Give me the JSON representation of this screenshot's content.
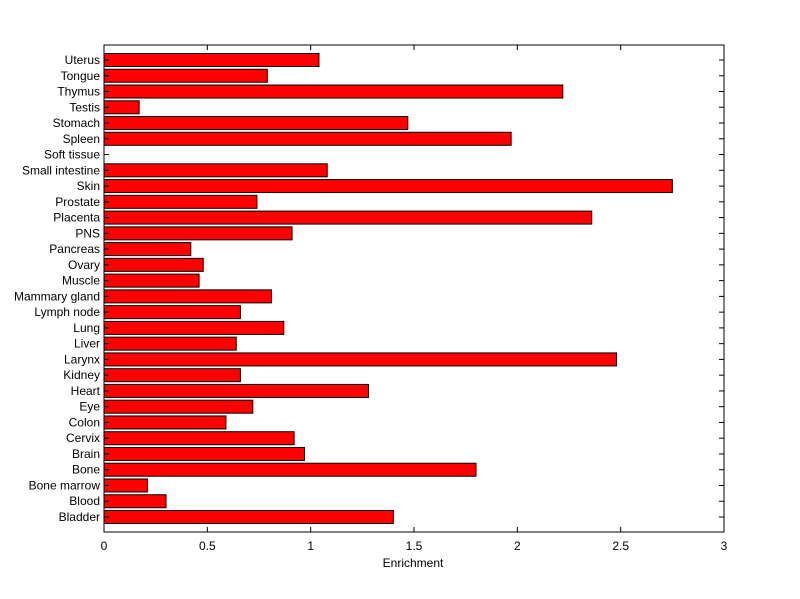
{
  "chart_data": {
    "type": "bar",
    "orientation": "horizontal",
    "title": "",
    "xlabel": "Enrichment",
    "ylabel": "",
    "xlim": [
      0,
      3
    ],
    "xticks": [
      0,
      0.5,
      1,
      1.5,
      2,
      2.5,
      3
    ],
    "xtick_labels": [
      "0",
      "0.5",
      "1",
      "1.5",
      "2",
      "2.5",
      "3"
    ],
    "grid": false,
    "legend": "none",
    "bar_color": "#ff0000",
    "bar_edge_color": "#000000",
    "categories": [
      "Bladder",
      "Blood",
      "Bone marrow",
      "Bone",
      "Brain",
      "Cervix",
      "Colon",
      "Eye",
      "Heart",
      "Kidney",
      "Larynx",
      "Liver",
      "Lung",
      "Lymph node",
      "Mammary gland",
      "Muscle",
      "Ovary",
      "Pancreas",
      "PNS",
      "Placenta",
      "Prostate",
      "Skin",
      "Small intestine",
      "Soft tissue",
      "Spleen",
      "Stomach",
      "Testis",
      "Thymus",
      "Tongue",
      "Uterus"
    ],
    "values": [
      1.4,
      0.3,
      0.21,
      1.8,
      0.97,
      0.92,
      0.59,
      0.72,
      1.28,
      0.66,
      2.48,
      0.64,
      0.87,
      0.66,
      0.81,
      0.46,
      0.48,
      0.42,
      0.91,
      2.36,
      0.74,
      2.75,
      1.08,
      0.0,
      1.97,
      1.47,
      0.17,
      2.22,
      0.79,
      1.04
    ]
  }
}
